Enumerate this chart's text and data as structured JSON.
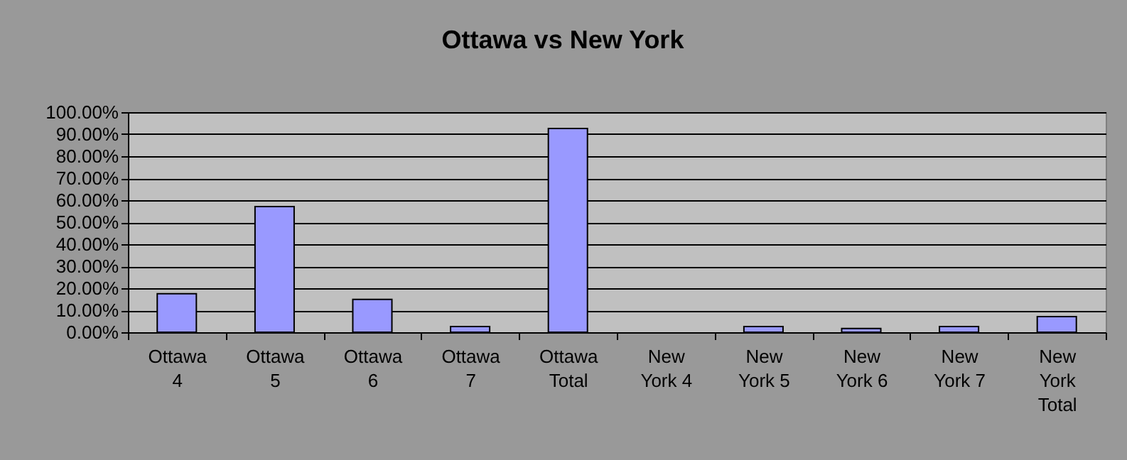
{
  "chart_data": {
    "type": "bar",
    "title": "Ottawa vs New York",
    "categories": [
      "Ottawa 4",
      "Ottawa 5",
      "Ottawa 6",
      "Ottawa 7",
      "Ottawa Total",
      "New York 4",
      "New York 5",
      "New York 6",
      "New York 7",
      "New York Total"
    ],
    "values": [
      17.5,
      57.1,
      14.9,
      2.6,
      92.6,
      null,
      2.6,
      1.7,
      2.6,
      7.1
    ],
    "color": "#9999ff",
    "ylim": [
      0,
      100
    ],
    "yticks": [
      {
        "value": 0,
        "label": "0.00%"
      },
      {
        "value": 10,
        "label": "10.00%"
      },
      {
        "value": 20,
        "label": "20.00%"
      },
      {
        "value": 30,
        "label": "30.00%"
      },
      {
        "value": 40,
        "label": "40.00%"
      },
      {
        "value": 50,
        "label": "50.00%"
      },
      {
        "value": 60,
        "label": "60.00%"
      },
      {
        "value": 70,
        "label": "70.00%"
      },
      {
        "value": 80,
        "label": "80.00%"
      },
      {
        "value": 90,
        "label": "90.00%"
      },
      {
        "value": 100,
        "label": "100.00%"
      }
    ],
    "grid": "y"
  }
}
